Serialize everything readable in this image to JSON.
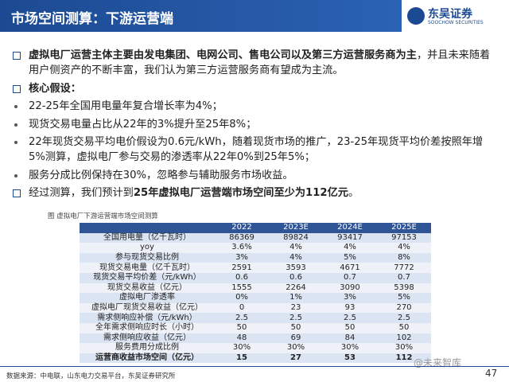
{
  "header": {
    "title": "市场空间测算：下游运营端",
    "logo_name": "东吴证券",
    "logo_english": "SOOCHOW SECURITIES"
  },
  "bullets": [
    {
      "level": "main",
      "segments": [
        {
          "text": "虚拟电厂运营主体主要由发电集团、电网公司、售电公司以及第三方运营服务商为主",
          "bold": true
        },
        {
          "text": "，并且未来随着用户侧资产的不断丰富，我们认为第三方运营服务商有望成为主流。",
          "bold": false
        }
      ]
    },
    {
      "level": "main",
      "segments": [
        {
          "text": "核心假设：",
          "bold": true
        }
      ]
    },
    {
      "level": "sub",
      "segments": [
        {
          "text": "22-25年全国用电量年复合增长率为4%；",
          "bold": false
        }
      ]
    },
    {
      "level": "sub",
      "segments": [
        {
          "text": "现货交易电量占比从22年的3%提升至25年8%；",
          "bold": false
        }
      ]
    },
    {
      "level": "sub",
      "segments": [
        {
          "text": "22年现货交易平均电价假设为0.6元/kWh，随着现货市场的推广，23-25年现货平均价差按照年增5%测算，虚拟电厂参与交易的渗透率从22年0%到25年5%；",
          "bold": false
        }
      ]
    },
    {
      "level": "sub",
      "segments": [
        {
          "text": "服务分成比例保持在30%，忽略参与辅助服务市场收益。",
          "bold": false
        }
      ]
    },
    {
      "level": "main",
      "segments": [
        {
          "text": "经过测算，我们预计到",
          "bold": false
        },
        {
          "text": "25年虚拟电厂运营端市场空间至少为112亿元",
          "bold": true
        },
        {
          "text": "。",
          "bold": false
        }
      ]
    }
  ],
  "table": {
    "caption": "图  虚拟电厂下游运营端市场空间测算",
    "columns": [
      "2022",
      "2023E",
      "2024E",
      "2025E"
    ],
    "rows": [
      {
        "label": "全国用电量（亿千瓦时）",
        "values": [
          "86369",
          "89824",
          "93417",
          "97153"
        ],
        "bold": false
      },
      {
        "label": "yoy",
        "values": [
          "3.6%",
          "4%",
          "4%",
          "4%"
        ],
        "bold": false
      },
      {
        "label": "参与现货交易比例",
        "values": [
          "3%",
          "4%",
          "5%",
          "8%"
        ],
        "bold": false
      },
      {
        "label": "现货交易电量（亿千瓦时）",
        "values": [
          "2591",
          "3593",
          "4671",
          "7772"
        ],
        "bold": false
      },
      {
        "label": "现货交易平均价差（元/kWh）",
        "values": [
          "0.6",
          "0.6",
          "0.7",
          "0.7"
        ],
        "bold": false
      },
      {
        "label": "现货交易收益（亿元）",
        "values": [
          "1555",
          "2264",
          "3090",
          "5398"
        ],
        "bold": false
      },
      {
        "label": "虚拟电厂渗透率",
        "values": [
          "0%",
          "1%",
          "3%",
          "5%"
        ],
        "bold": false
      },
      {
        "label": "虚拟电厂现货交易收益（亿元）",
        "values": [
          "0",
          "23",
          "93",
          "270"
        ],
        "bold": false
      },
      {
        "label": "需求侧响应补偿（元/kWh）",
        "values": [
          "2.5",
          "2.5",
          "2.5",
          "2.5"
        ],
        "bold": false
      },
      {
        "label": "全年需求侧响应时长（小时）",
        "values": [
          "50",
          "50",
          "50",
          "50"
        ],
        "bold": false
      },
      {
        "label": "需求侧响应收益（亿元）",
        "values": [
          "48",
          "69",
          "84",
          "102"
        ],
        "bold": false
      },
      {
        "label": "服务费用分成比例",
        "values": [
          "30%",
          "30%",
          "30%",
          "30%"
        ],
        "bold": false
      },
      {
        "label": "运营商收益市场空间（亿元）",
        "values": [
          "15",
          "27",
          "53",
          "112"
        ],
        "bold": true
      }
    ]
  },
  "footer": {
    "source": "数据来源：中电联，山东电力交易平台，东吴证券研究所",
    "page": "47",
    "watermark": "@未来智库"
  }
}
